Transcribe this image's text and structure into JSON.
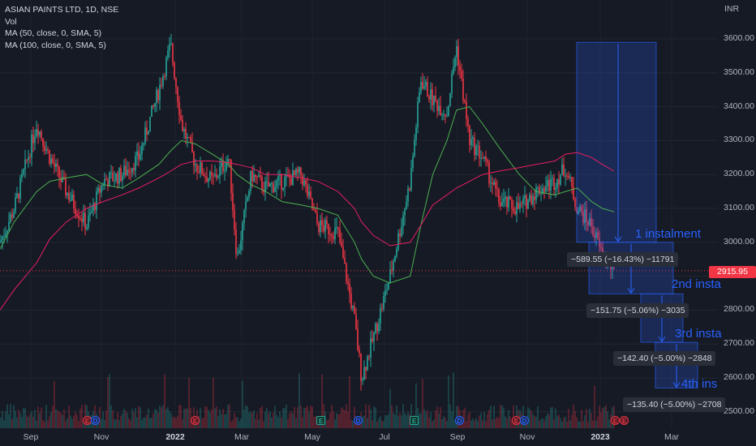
{
  "legend": {
    "symbol": "ASIAN PAINTS LTD, 1D, NSE",
    "vol": "Vol",
    "ma1": "MA (50, close, 0, SMA, 5)",
    "ma2": "MA (100, close, 0, SMA, 5)"
  },
  "currency": "INR",
  "last_price": "2915.95",
  "colors": {
    "up": "#26a69a",
    "down": "#f23645",
    "ma50": "#4caf50",
    "ma100": "#e91e63",
    "tool": "#2962ff",
    "bg": "#161a25"
  },
  "annotations": [
    "1 instalment",
    "2nd insta",
    "3rd insta",
    "4th ins"
  ],
  "measure_labels": [
    "−589.55 (−16.43%) −11791",
    "−151.75 (−5.06%) −3035",
    "−142.40 (−5.00%) −2848",
    "−135.40 (−5.00%) −2708"
  ],
  "events": [
    {
      "type": "E",
      "label": "E"
    },
    {
      "type": "D",
      "label": "D"
    },
    {
      "type": "E",
      "label": "E"
    },
    {
      "type": "S",
      "label": "E"
    },
    {
      "type": "D",
      "label": "D"
    },
    {
      "type": "S",
      "label": "E"
    },
    {
      "type": "D",
      "label": "D"
    },
    {
      "type": "E",
      "label": "E"
    },
    {
      "type": "D",
      "label": "D"
    },
    {
      "type": "E",
      "label": "E"
    },
    {
      "type": "E",
      "label": "E"
    }
  ],
  "chart_data": {
    "type": "line",
    "title": "ASIAN PAINTS LTD, 1D, NSE",
    "y_axis": {
      "range": [
        2470,
        3620
      ],
      "ticks": [
        "3600.00",
        "3500.00",
        "3400.00",
        "3300.00",
        "3200.00",
        "3100.00",
        "3000.00",
        "2900.00",
        "2800.00",
        "2700.00",
        "2600.00",
        "2500.00"
      ]
    },
    "x_axis": {
      "ticks": [
        "Sep",
        "Nov",
        "2022",
        "Mar",
        "May",
        "Jul",
        "Sep",
        "Nov",
        "2023",
        "Mar"
      ]
    },
    "x": [
      "2021-08-20",
      "2021-09-01",
      "2021-09-20",
      "2021-10-01",
      "2021-10-15",
      "2021-11-01",
      "2021-11-15",
      "2021-12-01",
      "2021-12-15",
      "2022-01-01",
      "2022-01-11",
      "2022-01-20",
      "2022-02-01",
      "2022-02-15",
      "2022-03-01",
      "2022-03-08",
      "2022-03-20",
      "2022-04-01",
      "2022-04-15",
      "2022-05-01",
      "2022-05-15",
      "2022-06-01",
      "2022-06-15",
      "2022-06-21",
      "2022-07-01",
      "2022-07-15",
      "2022-08-01",
      "2022-08-10",
      "2022-08-20",
      "2022-09-01",
      "2022-09-09",
      "2022-09-20",
      "2022-10-01",
      "2022-10-15",
      "2022-11-01",
      "2022-11-15",
      "2022-12-01",
      "2022-12-10",
      "2022-12-20",
      "2023-01-01",
      "2023-01-10",
      "2023-01-20"
    ],
    "series": [
      {
        "name": "ASIAN PAINTS LTD",
        "values": [
          3000,
          3100,
          3350,
          3250,
          3150,
          3050,
          3180,
          3200,
          3250,
          3450,
          3580,
          3350,
          3230,
          3180,
          3250,
          2950,
          3200,
          3160,
          3180,
          3200,
          3050,
          3030,
          2770,
          2600,
          2720,
          2900,
          3180,
          3480,
          3420,
          3380,
          3580,
          3300,
          3250,
          3120,
          3100,
          3150,
          3180,
          3220,
          3100,
          3050,
          2960,
          2916
        ]
      },
      {
        "name": "MA (50, close, 0, SMA, 5)",
        "values": [
          2980,
          3060,
          3150,
          3180,
          3190,
          3200,
          3170,
          3160,
          3190,
          3230,
          3270,
          3300,
          3290,
          3260,
          3230,
          3200,
          3170,
          3150,
          3120,
          3110,
          3100,
          3080,
          3000,
          2950,
          2900,
          2880,
          2900,
          3050,
          3200,
          3300,
          3390,
          3400,
          3350,
          3280,
          3200,
          3150,
          3140,
          3150,
          3160,
          3120,
          3100,
          3090
        ]
      },
      {
        "name": "MA (100, close, 0, SMA, 5)",
        "values": [
          2800,
          2860,
          2940,
          3010,
          3060,
          3100,
          3120,
          3140,
          3160,
          3190,
          3210,
          3230,
          3240,
          3240,
          3235,
          3230,
          3220,
          3200,
          3200,
          3190,
          3180,
          3150,
          3100,
          3060,
          3020,
          2990,
          3000,
          3050,
          3110,
          3140,
          3160,
          3180,
          3200,
          3210,
          3220,
          3230,
          3240,
          3260,
          3265,
          3250,
          3230,
          3210
        ]
      }
    ]
  }
}
